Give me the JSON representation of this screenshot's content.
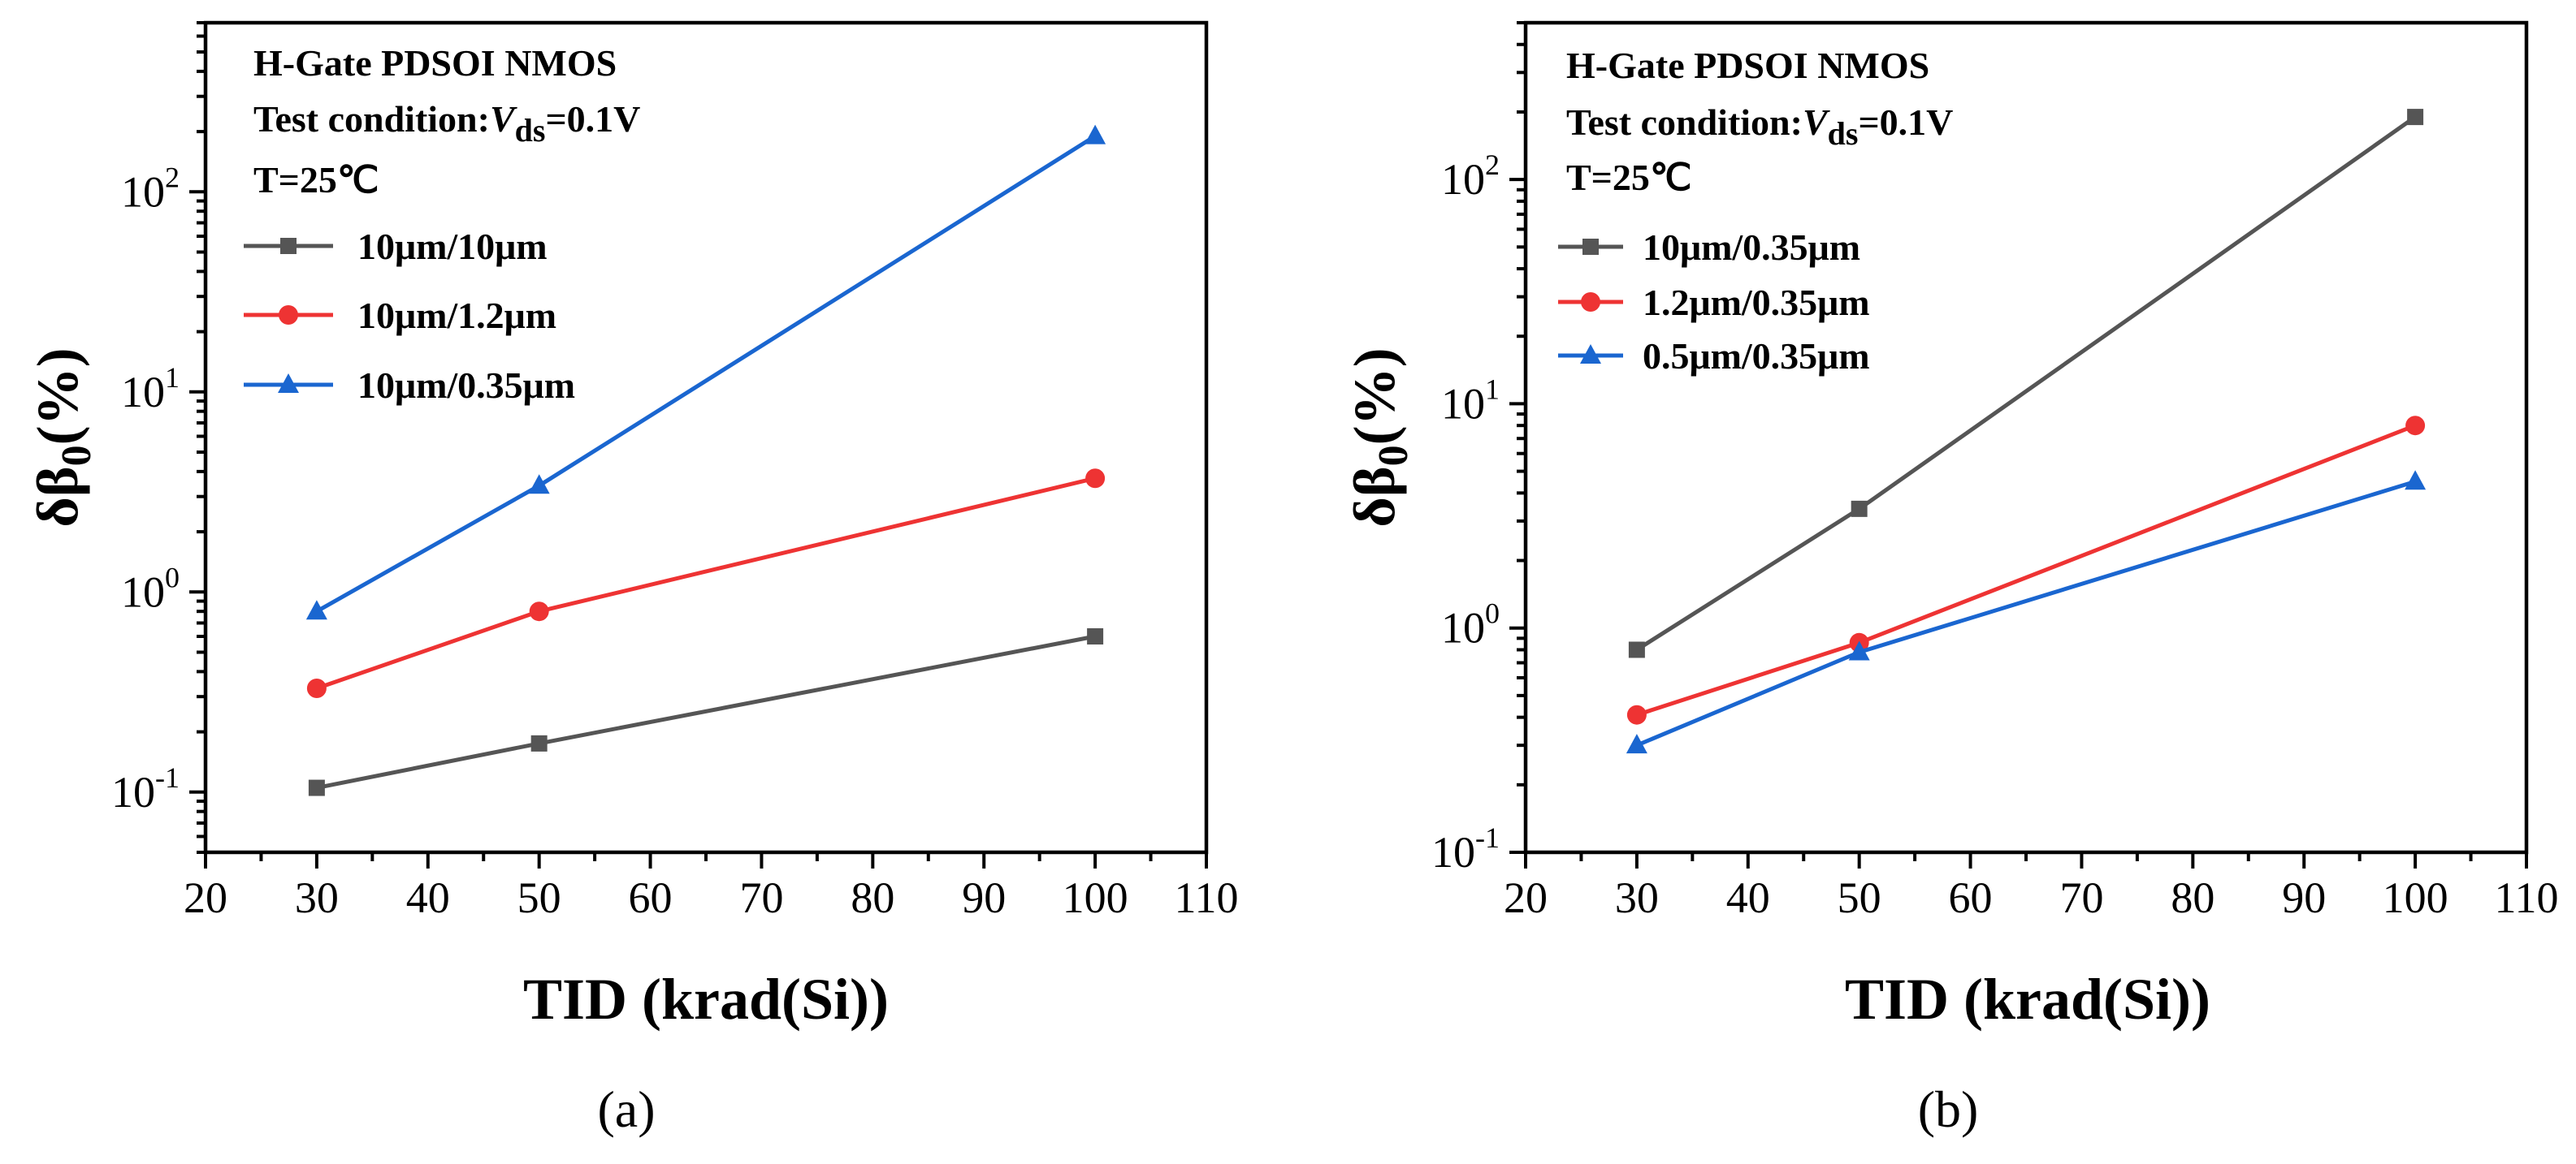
{
  "chart_data": [
    {
      "type": "line",
      "panel_label": "(a)",
      "xlabel": "TID (krad(Si))",
      "ylabel_main": "δβ",
      "ylabel_sub": "0",
      "ylabel_suffix": "(%)",
      "yscale": "log",
      "xlim": [
        20,
        110
      ],
      "ylim": [
        0.05,
        700
      ],
      "xticks": [
        "20",
        "30",
        "40",
        "50",
        "60",
        "70",
        "80",
        "90",
        "100",
        "110"
      ],
      "yticks": [
        {
          "value": 0.1,
          "base": "10",
          "exp": "-1"
        },
        {
          "value": 1,
          "base": "10",
          "exp": "0"
        },
        {
          "value": 10,
          "base": "10",
          "exp": "1"
        },
        {
          "value": 100,
          "base": "10",
          "exp": "2"
        }
      ],
      "annotation": {
        "line1": "H-Gate PDSOI NMOS",
        "line2_prefix": "Test condition:",
        "line2_var": "V",
        "line2_sub": "ds",
        "line2_suffix": "=0.1V",
        "line3": "T=25℃"
      },
      "legend_position": "top-left",
      "x": [
        30,
        50,
        100
      ],
      "series": [
        {
          "name": "10μm/10μm",
          "color": "#555555",
          "marker": "square",
          "values": [
            0.105,
            0.175,
            0.6
          ]
        },
        {
          "name": "10μm/1.2μm",
          "color": "#ee3333",
          "marker": "circle",
          "values": [
            0.33,
            0.8,
            3.7
          ]
        },
        {
          "name": "10μm/0.35μm",
          "color": "#1a66d0",
          "marker": "triangle",
          "values": [
            0.8,
            3.4,
            190
          ]
        }
      ]
    },
    {
      "type": "line",
      "panel_label": "(b)",
      "xlabel": "TID (krad(Si))",
      "ylabel_main": "δβ",
      "ylabel_sub": "0",
      "ylabel_suffix": "(%)",
      "yscale": "log",
      "xlim": [
        20,
        110
      ],
      "ylim": [
        0.1,
        500
      ],
      "xticks": [
        "20",
        "30",
        "40",
        "50",
        "60",
        "70",
        "80",
        "90",
        "100",
        "110"
      ],
      "yticks": [
        {
          "value": 0.1,
          "base": "10",
          "exp": "-1"
        },
        {
          "value": 1,
          "base": "10",
          "exp": "0"
        },
        {
          "value": 10,
          "base": "10",
          "exp": "1"
        },
        {
          "value": 100,
          "base": "10",
          "exp": "2"
        }
      ],
      "annotation": {
        "line1": "H-Gate PDSOI NMOS",
        "line2_prefix": "Test condition:",
        "line2_var": "V",
        "line2_sub": "ds",
        "line2_suffix": "=0.1V",
        "line3": "T=25℃"
      },
      "legend_position": "top-left",
      "x": [
        30,
        50,
        100
      ],
      "series": [
        {
          "name": "10μm/0.35μm",
          "color": "#555555",
          "marker": "square",
          "values": [
            0.8,
            3.4,
            190
          ]
        },
        {
          "name": "1.2μm/0.35μm",
          "color": "#ee3333",
          "marker": "circle",
          "values": [
            0.41,
            0.86,
            8.0
          ]
        },
        {
          "name": "0.5μm/0.35μm",
          "color": "#1a66d0",
          "marker": "triangle",
          "values": [
            0.3,
            0.78,
            4.5
          ]
        }
      ]
    }
  ]
}
